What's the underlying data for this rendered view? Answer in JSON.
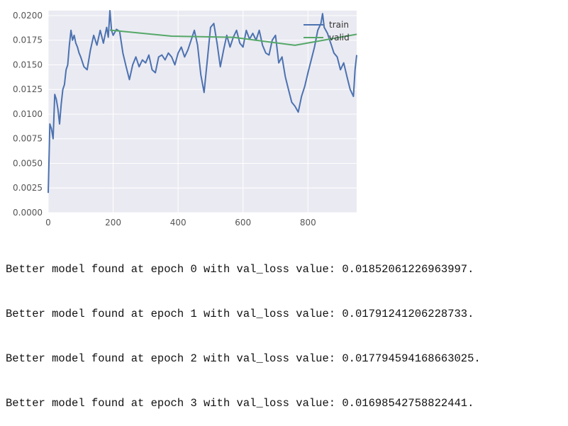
{
  "chart_data": {
    "type": "line",
    "title": "",
    "xlabel": "",
    "ylabel": "",
    "xlim": [
      0,
      950
    ],
    "ylim": [
      0,
      0.0205
    ],
    "grid": true,
    "legend_position": "top-right",
    "xticks": [
      0,
      200,
      400,
      600,
      800
    ],
    "xtick_labels": [
      "0",
      "200",
      "400",
      "600",
      "800"
    ],
    "yticks": [
      0.0,
      0.0025,
      0.005,
      0.0075,
      0.01,
      0.0125,
      0.015,
      0.0175,
      0.02
    ],
    "ytick_labels": [
      "0.0000",
      "0.0025",
      "0.0050",
      "0.0075",
      "0.0100",
      "0.0125",
      "0.0150",
      "0.0175",
      "0.0200"
    ],
    "series": [
      {
        "name": "train",
        "color": "#4c72b0",
        "x": [
          0,
          5,
          10,
          15,
          20,
          25,
          30,
          35,
          40,
          45,
          50,
          55,
          60,
          65,
          70,
          75,
          80,
          85,
          90,
          95,
          100,
          110,
          120,
          130,
          140,
          150,
          160,
          170,
          180,
          185,
          190,
          195,
          200,
          210,
          220,
          230,
          240,
          250,
          260,
          270,
          280,
          290,
          300,
          310,
          320,
          330,
          340,
          350,
          360,
          370,
          380,
          390,
          400,
          410,
          420,
          430,
          440,
          450,
          460,
          470,
          480,
          490,
          500,
          510,
          520,
          530,
          540,
          550,
          560,
          570,
          580,
          590,
          600,
          610,
          620,
          630,
          640,
          650,
          660,
          670,
          680,
          690,
          700,
          710,
          720,
          730,
          740,
          750,
          760,
          770,
          780,
          790,
          800,
          810,
          820,
          830,
          840,
          845,
          850,
          860,
          870,
          880,
          890,
          900,
          910,
          920,
          930,
          940,
          945,
          950
        ],
        "values": [
          0.002,
          0.009,
          0.0085,
          0.0075,
          0.012,
          0.0115,
          0.0105,
          0.009,
          0.011,
          0.0125,
          0.013,
          0.0145,
          0.015,
          0.017,
          0.0185,
          0.0175,
          0.018,
          0.0172,
          0.0168,
          0.0162,
          0.0158,
          0.0148,
          0.0145,
          0.0165,
          0.018,
          0.017,
          0.0185,
          0.0172,
          0.0188,
          0.0178,
          0.0205,
          0.0185,
          0.018,
          0.0186,
          0.0184,
          0.0162,
          0.0148,
          0.0135,
          0.015,
          0.0158,
          0.0148,
          0.0155,
          0.0152,
          0.016,
          0.0145,
          0.0142,
          0.0158,
          0.016,
          0.0155,
          0.0162,
          0.0158,
          0.015,
          0.0162,
          0.0168,
          0.0158,
          0.0165,
          0.0175,
          0.0185,
          0.017,
          0.014,
          0.0122,
          0.0155,
          0.0188,
          0.0192,
          0.0172,
          0.0148,
          0.0165,
          0.018,
          0.0168,
          0.0178,
          0.0185,
          0.0172,
          0.0168,
          0.0185,
          0.0176,
          0.0182,
          0.0175,
          0.0185,
          0.017,
          0.0162,
          0.016,
          0.0175,
          0.018,
          0.0152,
          0.0158,
          0.0138,
          0.0125,
          0.0112,
          0.0108,
          0.0102,
          0.0118,
          0.0128,
          0.0142,
          0.0155,
          0.0168,
          0.0185,
          0.0192,
          0.0202,
          0.0188,
          0.0182,
          0.0172,
          0.0162,
          0.0158,
          0.0145,
          0.0152,
          0.0138,
          0.0125,
          0.0118,
          0.0145,
          0.016
        ]
      },
      {
        "name": "valid",
        "color": "#55a868",
        "x": [
          190,
          380,
          570,
          760,
          950
        ],
        "values": [
          0.0185206,
          0.0179124,
          0.0177946,
          0.0169854,
          0.0181
        ]
      }
    ]
  },
  "log": {
    "lines": [
      "Better model found at epoch 0 with val_loss value: 0.01852061226963997.",
      "Better model found at epoch 1 with val_loss value: 0.01791241206228733.",
      "Better model found at epoch 2 with val_loss value: 0.017794594168663025.",
      "Better model found at epoch 3 with val_loss value: 0.01698542758822441."
    ]
  }
}
